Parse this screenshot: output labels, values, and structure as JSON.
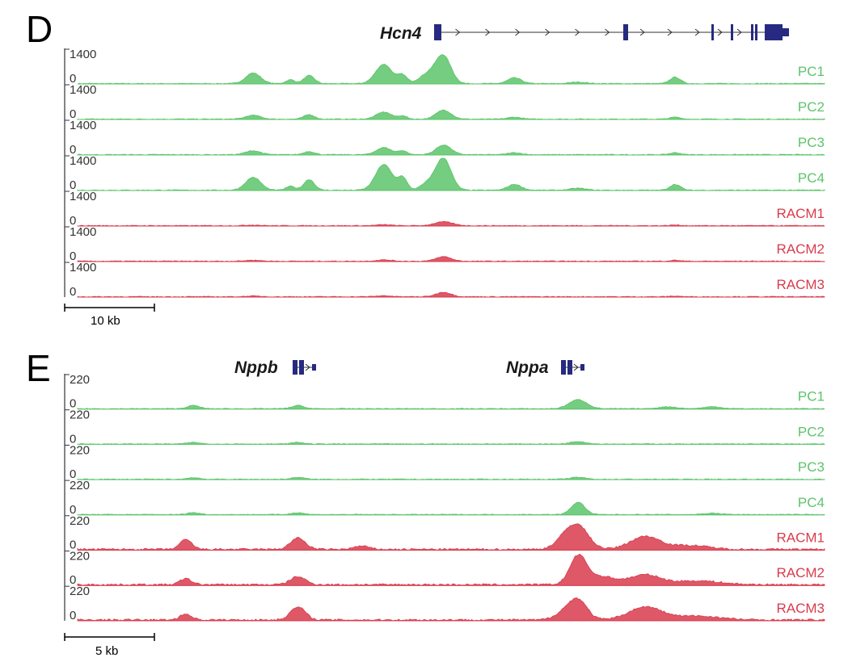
{
  "colors": {
    "pc": "#5cc46a",
    "racm": "#d83b4c",
    "gene": "#262a80",
    "axis": "#333333"
  },
  "chart_data": [
    {
      "type": "area",
      "panel": "D",
      "gene": "Hcn4",
      "gene_structure": "exons with intron arrows pointing right",
      "y_range": [
        0,
        1400
      ],
      "y_ticks": [
        "1400",
        "0"
      ],
      "scale_bar": "10 kb",
      "x_range": [
        0,
        1
      ],
      "grid": false,
      "legend": "track labels on right",
      "series": [
        {
          "name": "PC1",
          "group": "pc",
          "peaks": [
            [
              0.235,
              0.33,
              0.01
            ],
            [
              0.285,
              0.12,
              0.006
            ],
            [
              0.31,
              0.25,
              0.007
            ],
            [
              0.41,
              0.6,
              0.011
            ],
            [
              0.435,
              0.25,
              0.006
            ],
            [
              0.47,
              0.3,
              0.012
            ],
            [
              0.49,
              0.82,
              0.01
            ],
            [
              0.585,
              0.18,
              0.009
            ],
            [
              0.67,
              0.05,
              0.01
            ],
            [
              0.8,
              0.2,
              0.007
            ]
          ]
        },
        {
          "name": "PC2",
          "group": "pc",
          "peaks": [
            [
              0.235,
              0.12,
              0.01
            ],
            [
              0.31,
              0.14,
              0.007
            ],
            [
              0.41,
              0.22,
              0.01
            ],
            [
              0.435,
              0.1,
              0.006
            ],
            [
              0.49,
              0.28,
              0.01
            ],
            [
              0.585,
              0.06,
              0.009
            ],
            [
              0.8,
              0.06,
              0.007
            ]
          ]
        },
        {
          "name": "PC3",
          "group": "pc",
          "peaks": [
            [
              0.235,
              0.12,
              0.01
            ],
            [
              0.31,
              0.1,
              0.007
            ],
            [
              0.41,
              0.22,
              0.01
            ],
            [
              0.435,
              0.12,
              0.006
            ],
            [
              0.49,
              0.3,
              0.01
            ],
            [
              0.585,
              0.06,
              0.009
            ],
            [
              0.8,
              0.06,
              0.007
            ]
          ]
        },
        {
          "name": "PC4",
          "group": "pc",
          "peaks": [
            [
              0.235,
              0.4,
              0.01
            ],
            [
              0.285,
              0.12,
              0.006
            ],
            [
              0.31,
              0.33,
              0.007
            ],
            [
              0.41,
              0.8,
              0.011
            ],
            [
              0.435,
              0.38,
              0.006
            ],
            [
              0.47,
              0.22,
              0.01
            ],
            [
              0.49,
              0.98,
              0.01
            ],
            [
              0.585,
              0.18,
              0.009
            ],
            [
              0.67,
              0.06,
              0.01
            ],
            [
              0.8,
              0.18,
              0.007
            ]
          ]
        },
        {
          "name": "RACM1",
          "group": "racm",
          "peaks": [
            [
              0.235,
              0.02,
              0.01
            ],
            [
              0.41,
              0.03,
              0.01
            ],
            [
              0.49,
              0.12,
              0.012
            ],
            [
              0.8,
              0.02,
              0.007
            ]
          ]
        },
        {
          "name": "RACM2",
          "group": "racm",
          "peaks": [
            [
              0.235,
              0.03,
              0.01
            ],
            [
              0.41,
              0.04,
              0.01
            ],
            [
              0.49,
              0.14,
              0.01
            ],
            [
              0.8,
              0.03,
              0.007
            ]
          ]
        },
        {
          "name": "RACM3",
          "group": "racm",
          "peaks": [
            [
              0.235,
              0.02,
              0.01
            ],
            [
              0.41,
              0.03,
              0.01
            ],
            [
              0.49,
              0.14,
              0.01
            ],
            [
              0.8,
              0.02,
              0.007
            ]
          ]
        }
      ]
    },
    {
      "type": "area",
      "panel": "E",
      "genes": [
        "Nppb",
        "Nppa"
      ],
      "y_range": [
        0,
        220
      ],
      "y_ticks": [
        "220",
        "0"
      ],
      "scale_bar": "5 kb",
      "x_range": [
        0,
        1
      ],
      "grid": false,
      "legend": "track labels on right",
      "series": [
        {
          "name": "PC1",
          "group": "pc",
          "peaks": [
            [
              0.155,
              0.1,
              0.008
            ],
            [
              0.295,
              0.1,
              0.008
            ],
            [
              0.67,
              0.28,
              0.012
            ],
            [
              0.79,
              0.06,
              0.012
            ],
            [
              0.85,
              0.06,
              0.012
            ]
          ]
        },
        {
          "name": "PC2",
          "group": "pc",
          "peaks": [
            [
              0.155,
              0.05,
              0.008
            ],
            [
              0.295,
              0.05,
              0.008
            ],
            [
              0.67,
              0.08,
              0.01
            ]
          ]
        },
        {
          "name": "PC3",
          "group": "pc",
          "peaks": [
            [
              0.155,
              0.05,
              0.008
            ],
            [
              0.295,
              0.06,
              0.008
            ],
            [
              0.67,
              0.06,
              0.01
            ]
          ]
        },
        {
          "name": "PC4",
          "group": "pc",
          "peaks": [
            [
              0.155,
              0.06,
              0.008
            ],
            [
              0.295,
              0.06,
              0.008
            ],
            [
              0.67,
              0.38,
              0.009
            ],
            [
              0.85,
              0.04,
              0.012
            ]
          ]
        },
        {
          "name": "RACM1",
          "group": "racm",
          "peaks": [
            [
              0.145,
              0.3,
              0.008
            ],
            [
              0.295,
              0.35,
              0.01
            ],
            [
              0.38,
              0.1,
              0.01
            ],
            [
              0.67,
              0.72,
              0.014
            ],
            [
              0.65,
              0.25,
              0.012
            ],
            [
              0.76,
              0.4,
              0.02
            ],
            [
              0.82,
              0.12,
              0.025
            ]
          ]
        },
        {
          "name": "RACM2",
          "group": "racm",
          "peaks": [
            [
              0.145,
              0.18,
              0.008
            ],
            [
              0.295,
              0.25,
              0.01
            ],
            [
              0.67,
              0.85,
              0.011
            ],
            [
              0.7,
              0.25,
              0.02
            ],
            [
              0.76,
              0.3,
              0.02
            ],
            [
              0.83,
              0.12,
              0.03
            ]
          ]
        },
        {
          "name": "RACM3",
          "group": "racm",
          "peaks": [
            [
              0.145,
              0.18,
              0.008
            ],
            [
              0.295,
              0.4,
              0.01
            ],
            [
              0.67,
              0.62,
              0.012
            ],
            [
              0.65,
              0.2,
              0.012
            ],
            [
              0.76,
              0.4,
              0.022
            ],
            [
              0.83,
              0.12,
              0.03
            ]
          ]
        }
      ]
    }
  ]
}
